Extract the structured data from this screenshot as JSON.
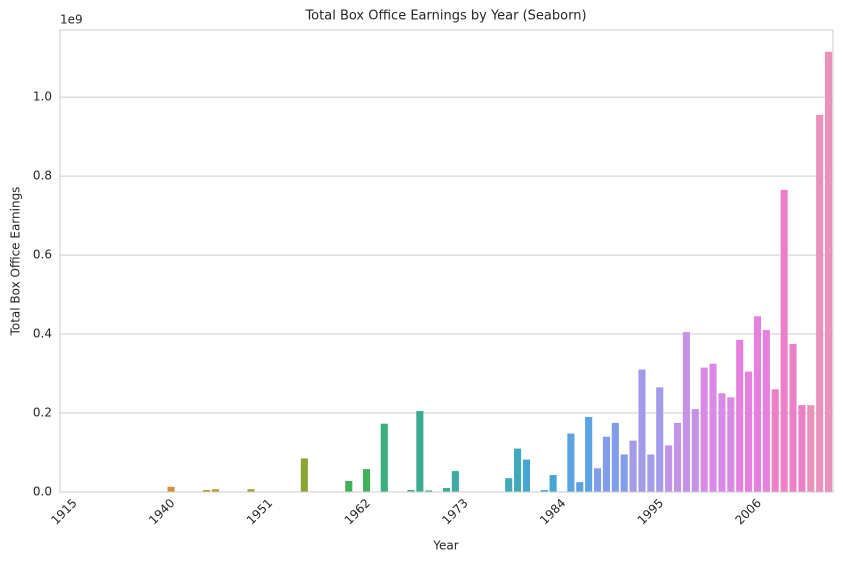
{
  "chart_data": {
    "type": "bar",
    "title": "Total Box Office Earnings by Year (Seaborn)",
    "xlabel": "Year",
    "ylabel": "Total Box Office Earnings",
    "offset_label": "1e9",
    "categories": [
      "1915",
      null,
      null,
      null,
      null,
      null,
      null,
      null,
      null,
      null,
      null,
      "1940",
      null,
      null,
      null,
      null,
      null,
      null,
      null,
      null,
      null,
      null,
      "1951",
      null,
      null,
      null,
      null,
      null,
      null,
      null,
      null,
      null,
      null,
      "1962",
      null,
      null,
      null,
      null,
      null,
      null,
      null,
      null,
      null,
      null,
      "1973",
      null,
      null,
      null,
      null,
      null,
      null,
      null,
      null,
      null,
      null,
      "1984",
      null,
      null,
      null,
      null,
      null,
      null,
      null,
      null,
      null,
      null,
      "1995",
      null,
      null,
      null,
      null,
      null,
      null,
      null,
      null,
      null,
      null,
      "2006",
      null,
      null,
      null,
      null,
      null,
      null,
      null,
      null,
      null
    ],
    "values": [
      0,
      0,
      0,
      0,
      0,
      0,
      0,
      0,
      0,
      0,
      0,
      0,
      0.013,
      0,
      0,
      0,
      0.005,
      0.007,
      0,
      0,
      0,
      0.007,
      0,
      0,
      0,
      0,
      0,
      0.085,
      0,
      0,
      0,
      0,
      0.028,
      0,
      0.058,
      0,
      0.173,
      0,
      0,
      0.005,
      0.205,
      0.004,
      0,
      0.01,
      0.053,
      0,
      0,
      0,
      0,
      0,
      0.035,
      0.11,
      0.082,
      0,
      0.005,
      0.043,
      0,
      0.148,
      0.025,
      0.19,
      0.06,
      0.14,
      0.175,
      0.095,
      0.13,
      0.31,
      0.095,
      0.265,
      0.118,
      0.175,
      0.405,
      0.21,
      0.315,
      0.325,
      0.25,
      0.24,
      0.385,
      0.305,
      0.445,
      0.41,
      0.26,
      0.765,
      0.375,
      0.22,
      0.22,
      0.955,
      1.115
    ],
    "colors": [
      "#f77189",
      "#f77189",
      "#f77189",
      "#f77189",
      "#f57a62",
      "#f57a62",
      "#f57a62",
      "#f57a62",
      "#e08437",
      "#e08437",
      "#e08437",
      "#e08437",
      "#c8933b",
      "#c8933b",
      "#c8933b",
      "#c8933b",
      "#b49b33",
      "#b49b33",
      "#b49b33",
      "#b49b33",
      "#a39e31",
      "#a39e31",
      "#a39e31",
      "#a39e31",
      "#8ca431",
      "#8ca431",
      "#8ca431",
      "#8ca431",
      "#6aab3f",
      "#6aab3f",
      "#6aab3f",
      "#6aab3f",
      "#45b05a",
      "#45b05a",
      "#45b05a",
      "#45b05a",
      "#3aae7c",
      "#3aae7c",
      "#3aae7c",
      "#3aae7c",
      "#3bac93",
      "#3bac93",
      "#3bac93",
      "#3bac93",
      "#3eaba6",
      "#3eaba6",
      "#3eaba6",
      "#3eaba6",
      "#40a9ba",
      "#40a9ba",
      "#40a9ba",
      "#40a9ba",
      "#46a6cf",
      "#46a6cf",
      "#46a6cf",
      "#46a6cf",
      "#5aa2e2",
      "#5aa2e2",
      "#5aa2e2",
      "#5aa2e2",
      "#829de9",
      "#829de9",
      "#829de9",
      "#829de9",
      "#a39ae8",
      "#a39ae8",
      "#a39ae8",
      "#a39ae8",
      "#c393e8",
      "#c393e8",
      "#c393e8",
      "#c393e8",
      "#d98ae6",
      "#d98ae6",
      "#d98ae6",
      "#d98ae6",
      "#e580df",
      "#e580df",
      "#e580df",
      "#e580df",
      "#ed7fc8",
      "#ed7fc8",
      "#ed7fc8",
      "#ed7fc8",
      "#ea92bb",
      "#ea92bb",
      "#ea92bb"
    ],
    "ylim": [
      0,
      1.17
    ],
    "yticks": [
      {
        "value": 0,
        "label": "0.0"
      },
      0.2,
      0.4,
      0.6,
      0.8,
      {
        "value": 1,
        "label": "1.0"
      }
    ],
    "grid": true
  }
}
